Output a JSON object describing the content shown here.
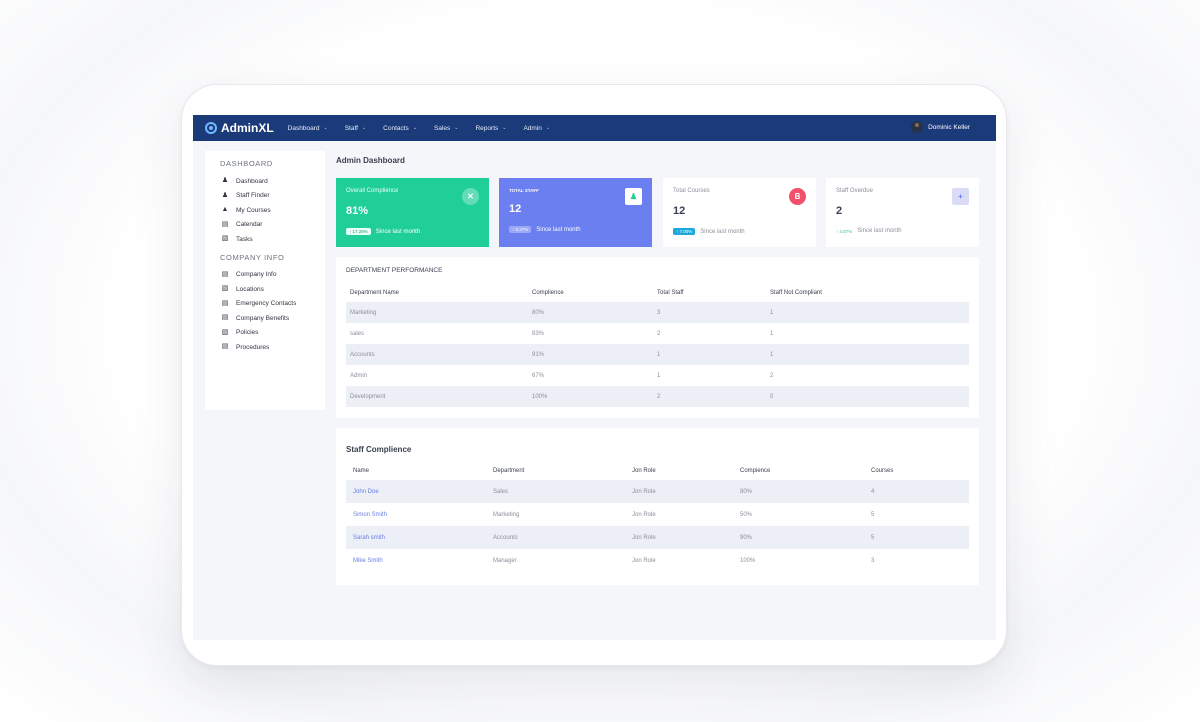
{
  "nav": {
    "brand": "AdminXL",
    "menu": [
      {
        "label": "Dashboard"
      },
      {
        "label": "Staff"
      },
      {
        "label": "Contacts"
      },
      {
        "label": "Sales"
      },
      {
        "label": "Reports"
      },
      {
        "label": "Admin"
      }
    ],
    "user_name": "Dominic Keller"
  },
  "sidebar": {
    "dashboard_heading": "DASHBOARD",
    "dashboard_items": [
      {
        "label": "Dashboard",
        "icon": "users-icon"
      },
      {
        "label": "Staff Finder",
        "icon": "users-icon"
      },
      {
        "label": "My Courses",
        "icon": "graduation-cap-icon"
      },
      {
        "label": "Calendar",
        "icon": "calendar-icon"
      },
      {
        "label": "Tasks",
        "icon": "clipboard-icon"
      }
    ],
    "company_heading": "COMPANY INFO",
    "company_items": [
      {
        "label": "Company Info",
        "icon": "id-card-icon"
      },
      {
        "label": "Locations",
        "icon": "map-icon"
      },
      {
        "label": "Emergency Contacts",
        "icon": "id-card-icon"
      },
      {
        "label": "Company Benefits",
        "icon": "id-card-icon"
      },
      {
        "label": "Policies",
        "icon": "document-icon"
      },
      {
        "label": "Procedures",
        "icon": "id-card-icon"
      }
    ]
  },
  "main": {
    "title": "Admin Dashboard",
    "cards": [
      {
        "label": "Overall Complience",
        "value": "81%",
        "badge": "↑ 17.28%",
        "since": "Since last month",
        "icon": "close-icon",
        "bg": "#1fcf97"
      },
      {
        "label": "TOTAL STAFF",
        "value": "12",
        "badge": "↑ 5.27%",
        "since": "Since last month",
        "icon": "users-icon",
        "bg": "#6b7ff0"
      },
      {
        "label": "Total Courses",
        "value": "12",
        "badge": "↑ 7.00%",
        "since": "Since last month",
        "icon": "bitcoin-icon",
        "accent": "#f2506a"
      },
      {
        "label": "Staff Overdue",
        "value": "2",
        "badge": "↑ 4.87%",
        "since": "Since last month",
        "icon": "plus-icon",
        "accent": "#b7bdf3"
      }
    ],
    "department": {
      "title": "DEPARTMENT PERFORMANCE",
      "columns": [
        "Department Name",
        "Complience",
        "Total Staff",
        "Staff Not Compliant"
      ],
      "rows": [
        [
          "Marketing",
          "80%",
          "3",
          "1"
        ],
        [
          "sales",
          "83%",
          "2",
          "1"
        ],
        [
          "Accounts",
          "91%",
          "1",
          "1"
        ],
        [
          "Admin",
          "67%",
          "1",
          "2"
        ],
        [
          "Development",
          "100%",
          "2",
          "0"
        ]
      ]
    },
    "staff": {
      "title": "Staff Complience",
      "columns": [
        "Name",
        "Department",
        "Jon Role",
        "Compience",
        "Courses"
      ],
      "rows": [
        [
          "John Doe",
          "Sales",
          "Jon Role",
          "80%",
          "4"
        ],
        [
          "Simon Smith",
          "Marketing",
          "Jon Role",
          "50%",
          "5"
        ],
        [
          "Sarah smith",
          "Accounts",
          "Jon Role",
          "90%",
          "5"
        ],
        [
          "Mike Smith",
          "Manager",
          "Jon Role",
          "100%",
          "3"
        ]
      ]
    }
  }
}
